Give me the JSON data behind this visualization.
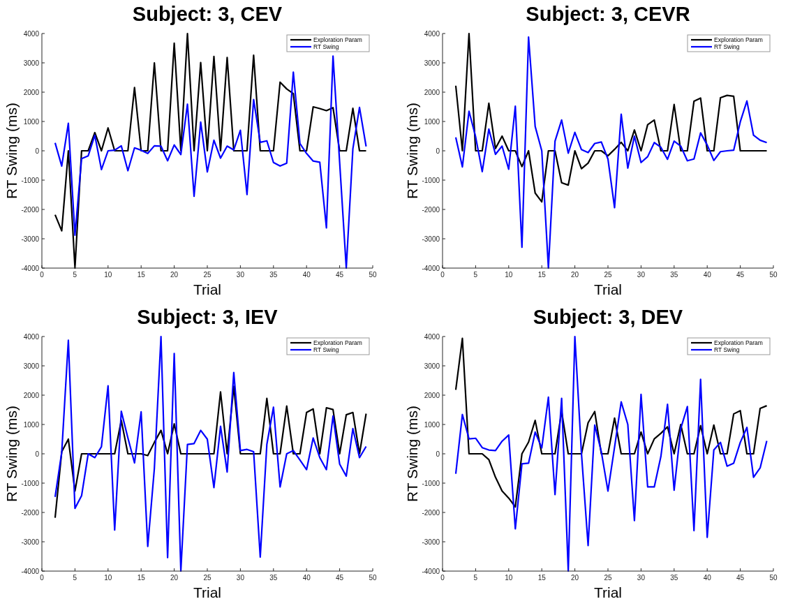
{
  "chart_data": [
    {
      "type": "line",
      "title": "Subject: 3, CEV",
      "xlabel": "Trial",
      "ylabel": "RT Swing (ms)",
      "xlim": [
        0,
        50
      ],
      "xticks": [
        0,
        5,
        10,
        15,
        20,
        25,
        30,
        35,
        40,
        45,
        50
      ],
      "ylim": [
        -4000,
        4000
      ],
      "yticks": [
        -4000,
        -3000,
        -2000,
        -1000,
        0,
        1000,
        2000,
        3000,
        4000
      ],
      "grid": false,
      "legend": "top right",
      "line_style": "solid",
      "marker": "none",
      "x": [
        2,
        3,
        4,
        5,
        6,
        7,
        8,
        9,
        10,
        11,
        12,
        13,
        14,
        15,
        16,
        17,
        18,
        19,
        20,
        21,
        22,
        23,
        24,
        25,
        26,
        27,
        28,
        29,
        30,
        31,
        32,
        33,
        34,
        35,
        36,
        37,
        38,
        39,
        40,
        41,
        42,
        43,
        44,
        45,
        46,
        47,
        48,
        49
      ],
      "series": [
        {
          "name": "Exploration Param",
          "color": "#000000",
          "values": [
            -2180,
            -2730,
            0,
            -4000,
            0,
            0,
            620,
            0,
            780,
            0,
            0,
            0,
            2160,
            0,
            0,
            3000,
            0,
            0,
            3670,
            0,
            4000,
            0,
            3010,
            0,
            3220,
            0,
            3180,
            0,
            0,
            0,
            3260,
            0,
            0,
            0,
            2340,
            2110,
            1950,
            0,
            0,
            1500,
            1440,
            1370,
            1470,
            0,
            0,
            1450,
            0,
            0
          ]
        },
        {
          "name": "RT Swing",
          "color": "#0000ff",
          "values": [
            270,
            -520,
            940,
            -2880,
            -270,
            -170,
            530,
            -640,
            0,
            20,
            170,
            -680,
            100,
            20,
            -90,
            170,
            160,
            -340,
            200,
            -130,
            1590,
            -1550,
            980,
            -720,
            360,
            -250,
            160,
            30,
            700,
            -1490,
            1750,
            290,
            340,
            -400,
            -520,
            -420,
            2680,
            250,
            -90,
            -350,
            -390,
            -2630,
            3230,
            -390,
            -4000,
            70,
            1480,
            150
          ]
        }
      ]
    },
    {
      "type": "line",
      "title": "Subject: 3, CEVR",
      "xlabel": "Trial",
      "ylabel": "RT Swing (ms)",
      "xlim": [
        0,
        50
      ],
      "xticks": [
        0,
        5,
        10,
        15,
        20,
        25,
        30,
        35,
        40,
        45,
        50
      ],
      "ylim": [
        -4000,
        4000
      ],
      "yticks": [
        -4000,
        -3000,
        -2000,
        -1000,
        0,
        1000,
        2000,
        3000,
        4000
      ],
      "grid": false,
      "legend": "top right",
      "line_style": "solid",
      "marker": "none",
      "x": [
        2,
        3,
        4,
        5,
        6,
        7,
        8,
        9,
        10,
        11,
        12,
        13,
        14,
        15,
        16,
        17,
        18,
        19,
        20,
        21,
        22,
        23,
        24,
        25,
        26,
        27,
        28,
        29,
        30,
        31,
        32,
        33,
        34,
        35,
        36,
        37,
        38,
        39,
        40,
        41,
        42,
        43,
        44,
        45,
        46,
        47,
        48,
        49
      ],
      "series": [
        {
          "name": "Exploration Param",
          "color": "#000000",
          "values": [
            2220,
            0,
            4000,
            0,
            0,
            1620,
            80,
            500,
            0,
            0,
            -540,
            0,
            -1440,
            -1740,
            0,
            0,
            -1090,
            -1170,
            0,
            -610,
            -420,
            0,
            0,
            -170,
            50,
            290,
            0,
            710,
            0,
            890,
            1050,
            0,
            0,
            1580,
            0,
            0,
            1690,
            1800,
            0,
            0,
            1810,
            1890,
            1860,
            0,
            0,
            0,
            0,
            0
          ]
        },
        {
          "name": "RT Swing",
          "color": "#0000ff",
          "values": [
            460,
            -550,
            1350,
            480,
            -710,
            740,
            -120,
            160,
            -630,
            1520,
            -3290,
            3880,
            830,
            0,
            -4000,
            330,
            1050,
            -80,
            630,
            40,
            -60,
            250,
            300,
            -280,
            -1940,
            1250,
            -590,
            500,
            -400,
            -200,
            280,
            120,
            -290,
            330,
            160,
            -340,
            -280,
            610,
            200,
            -330,
            -30,
            0,
            20,
            990,
            1700,
            530,
            360,
            280
          ]
        }
      ]
    },
    {
      "type": "line",
      "title": "Subject: 3, IEV",
      "xlabel": "Trial",
      "ylabel": "RT Swing (ms)",
      "xlim": [
        0,
        50
      ],
      "xticks": [
        0,
        5,
        10,
        15,
        20,
        25,
        30,
        35,
        40,
        45,
        50
      ],
      "ylim": [
        -4000,
        4000
      ],
      "yticks": [
        -4000,
        -3000,
        -2000,
        -1000,
        0,
        1000,
        2000,
        3000,
        4000
      ],
      "grid": false,
      "legend": "top right",
      "line_style": "solid",
      "marker": "none",
      "x": [
        2,
        3,
        4,
        5,
        6,
        7,
        8,
        9,
        10,
        11,
        12,
        13,
        14,
        15,
        16,
        17,
        18,
        19,
        20,
        21,
        22,
        23,
        24,
        25,
        26,
        27,
        28,
        29,
        30,
        31,
        32,
        33,
        34,
        35,
        36,
        37,
        38,
        39,
        40,
        41,
        42,
        43,
        44,
        45,
        46,
        47,
        48,
        49
      ],
      "series": [
        {
          "name": "Exploration Param",
          "color": "#000000",
          "values": [
            -2180,
            70,
            500,
            -1270,
            0,
            0,
            0,
            0,
            0,
            0,
            1140,
            0,
            0,
            0,
            -60,
            390,
            800,
            0,
            1020,
            0,
            0,
            0,
            0,
            0,
            0,
            2110,
            0,
            2300,
            0,
            0,
            0,
            0,
            1890,
            0,
            0,
            1630,
            0,
            0,
            1410,
            1530,
            0,
            1570,
            1510,
            0,
            1330,
            1410,
            0,
            1370
          ]
        },
        {
          "name": "RT Swing",
          "color": "#0000ff",
          "values": [
            -1470,
            50,
            3870,
            -1860,
            -1430,
            0,
            -130,
            240,
            2320,
            -2600,
            1450,
            540,
            -310,
            1430,
            -3160,
            -500,
            4000,
            -3540,
            3420,
            -4000,
            320,
            350,
            800,
            500,
            -1150,
            940,
            -620,
            2770,
            110,
            150,
            70,
            -3520,
            320,
            1590,
            -1130,
            0,
            110,
            -210,
            -540,
            540,
            -130,
            -540,
            1290,
            -350,
            -760,
            860,
            -130,
            250
          ]
        }
      ]
    },
    {
      "type": "line",
      "title": "Subject: 3, DEV",
      "xlabel": "Trial",
      "ylabel": "RT Swing (ms)",
      "xlim": [
        0,
        50
      ],
      "xticks": [
        0,
        5,
        10,
        15,
        20,
        25,
        30,
        35,
        40,
        45,
        50
      ],
      "ylim": [
        -4000,
        4000
      ],
      "yticks": [
        -4000,
        -3000,
        -2000,
        -1000,
        0,
        1000,
        2000,
        3000,
        4000
      ],
      "grid": false,
      "legend": "top right",
      "line_style": "solid",
      "marker": "none",
      "x": [
        2,
        3,
        4,
        5,
        6,
        7,
        8,
        9,
        10,
        11,
        12,
        13,
        14,
        15,
        16,
        17,
        18,
        19,
        20,
        21,
        22,
        23,
        24,
        25,
        26,
        27,
        28,
        29,
        30,
        31,
        32,
        33,
        34,
        35,
        36,
        37,
        38,
        39,
        40,
        41,
        42,
        43,
        44,
        45,
        46,
        47,
        48,
        49
      ],
      "series": [
        {
          "name": "Exploration Param",
          "color": "#000000",
          "values": [
            2180,
            3940,
            0,
            0,
            0,
            -200,
            -800,
            -1270,
            -1510,
            -1810,
            0,
            400,
            1140,
            0,
            0,
            0,
            1450,
            0,
            0,
            0,
            1060,
            1440,
            0,
            0,
            1220,
            0,
            0,
            0,
            740,
            0,
            510,
            700,
            920,
            0,
            1000,
            0,
            0,
            960,
            0,
            980,
            0,
            0,
            1360,
            1470,
            0,
            0,
            1550,
            1640
          ]
        },
        {
          "name": "RT Swing",
          "color": "#0000ff",
          "values": [
            -680,
            1340,
            510,
            530,
            210,
            130,
            110,
            430,
            640,
            -2560,
            -340,
            -320,
            740,
            200,
            1930,
            -1390,
            1890,
            -4000,
            4000,
            0,
            -3130,
            980,
            70,
            -1270,
            230,
            1770,
            1000,
            -2280,
            2030,
            -1130,
            -1130,
            -90,
            1690,
            -1240,
            860,
            1610,
            -2620,
            2540,
            -2850,
            130,
            390,
            -420,
            -320,
            390,
            900,
            -800,
            -480,
            440
          ]
        }
      ]
    }
  ]
}
